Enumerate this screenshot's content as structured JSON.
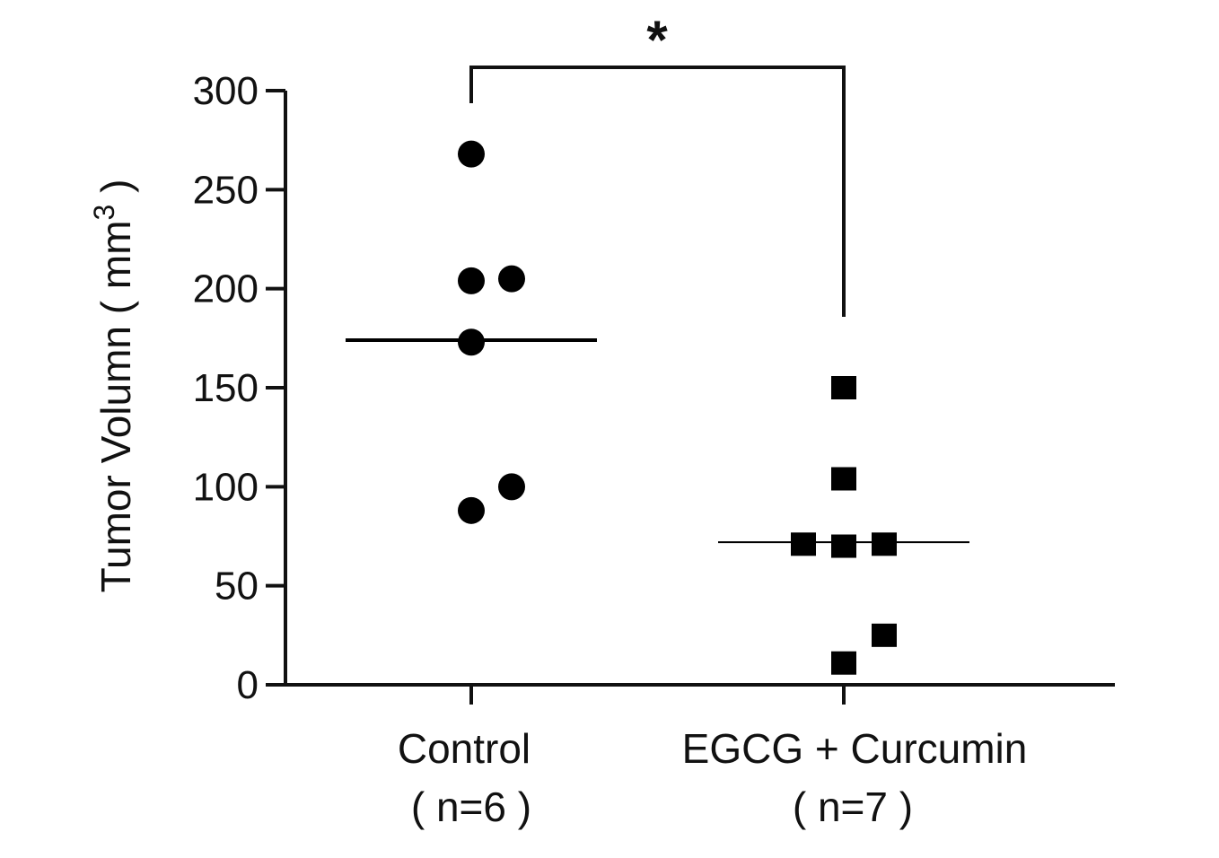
{
  "chart_data": {
    "type": "scatter",
    "ylabel": "Tumor Volumn ( mm",
    "ylabel_superscript": "3",
    "ylabel_close": " )",
    "ylim": [
      0,
      300
    ],
    "yticks": [
      0,
      50,
      100,
      150,
      200,
      250,
      300
    ],
    "categories": [
      {
        "name": "Control",
        "sample": "( n=6 )"
      },
      {
        "name": "EGCG + Curcumin",
        "sample": "( n=7 )"
      }
    ],
    "series": [
      {
        "category": "Control",
        "marker": "circle",
        "points": [
          {
            "offset": 0,
            "y": 268
          },
          {
            "offset": 0,
            "y": 204
          },
          {
            "offset": 1,
            "y": 205
          },
          {
            "offset": 0,
            "y": 173
          },
          {
            "offset": 1,
            "y": 100
          },
          {
            "offset": 0,
            "y": 88
          }
        ],
        "mean": 174
      },
      {
        "category": "EGCG + Curcumin",
        "marker": "square",
        "points": [
          {
            "offset": 0,
            "y": 150
          },
          {
            "offset": 0,
            "y": 104
          },
          {
            "offset": -1,
            "y": 71
          },
          {
            "offset": 0,
            "y": 70
          },
          {
            "offset": 1,
            "y": 71
          },
          {
            "offset": 1,
            "y": 25
          },
          {
            "offset": 0,
            "y": 11
          }
        ],
        "mean": 72
      }
    ],
    "significance": {
      "label": "*",
      "between": [
        "Control",
        "EGCG + Curcumin"
      ]
    },
    "grid": false,
    "colors": {
      "marker": "#000000",
      "axis": "#111111"
    }
  }
}
